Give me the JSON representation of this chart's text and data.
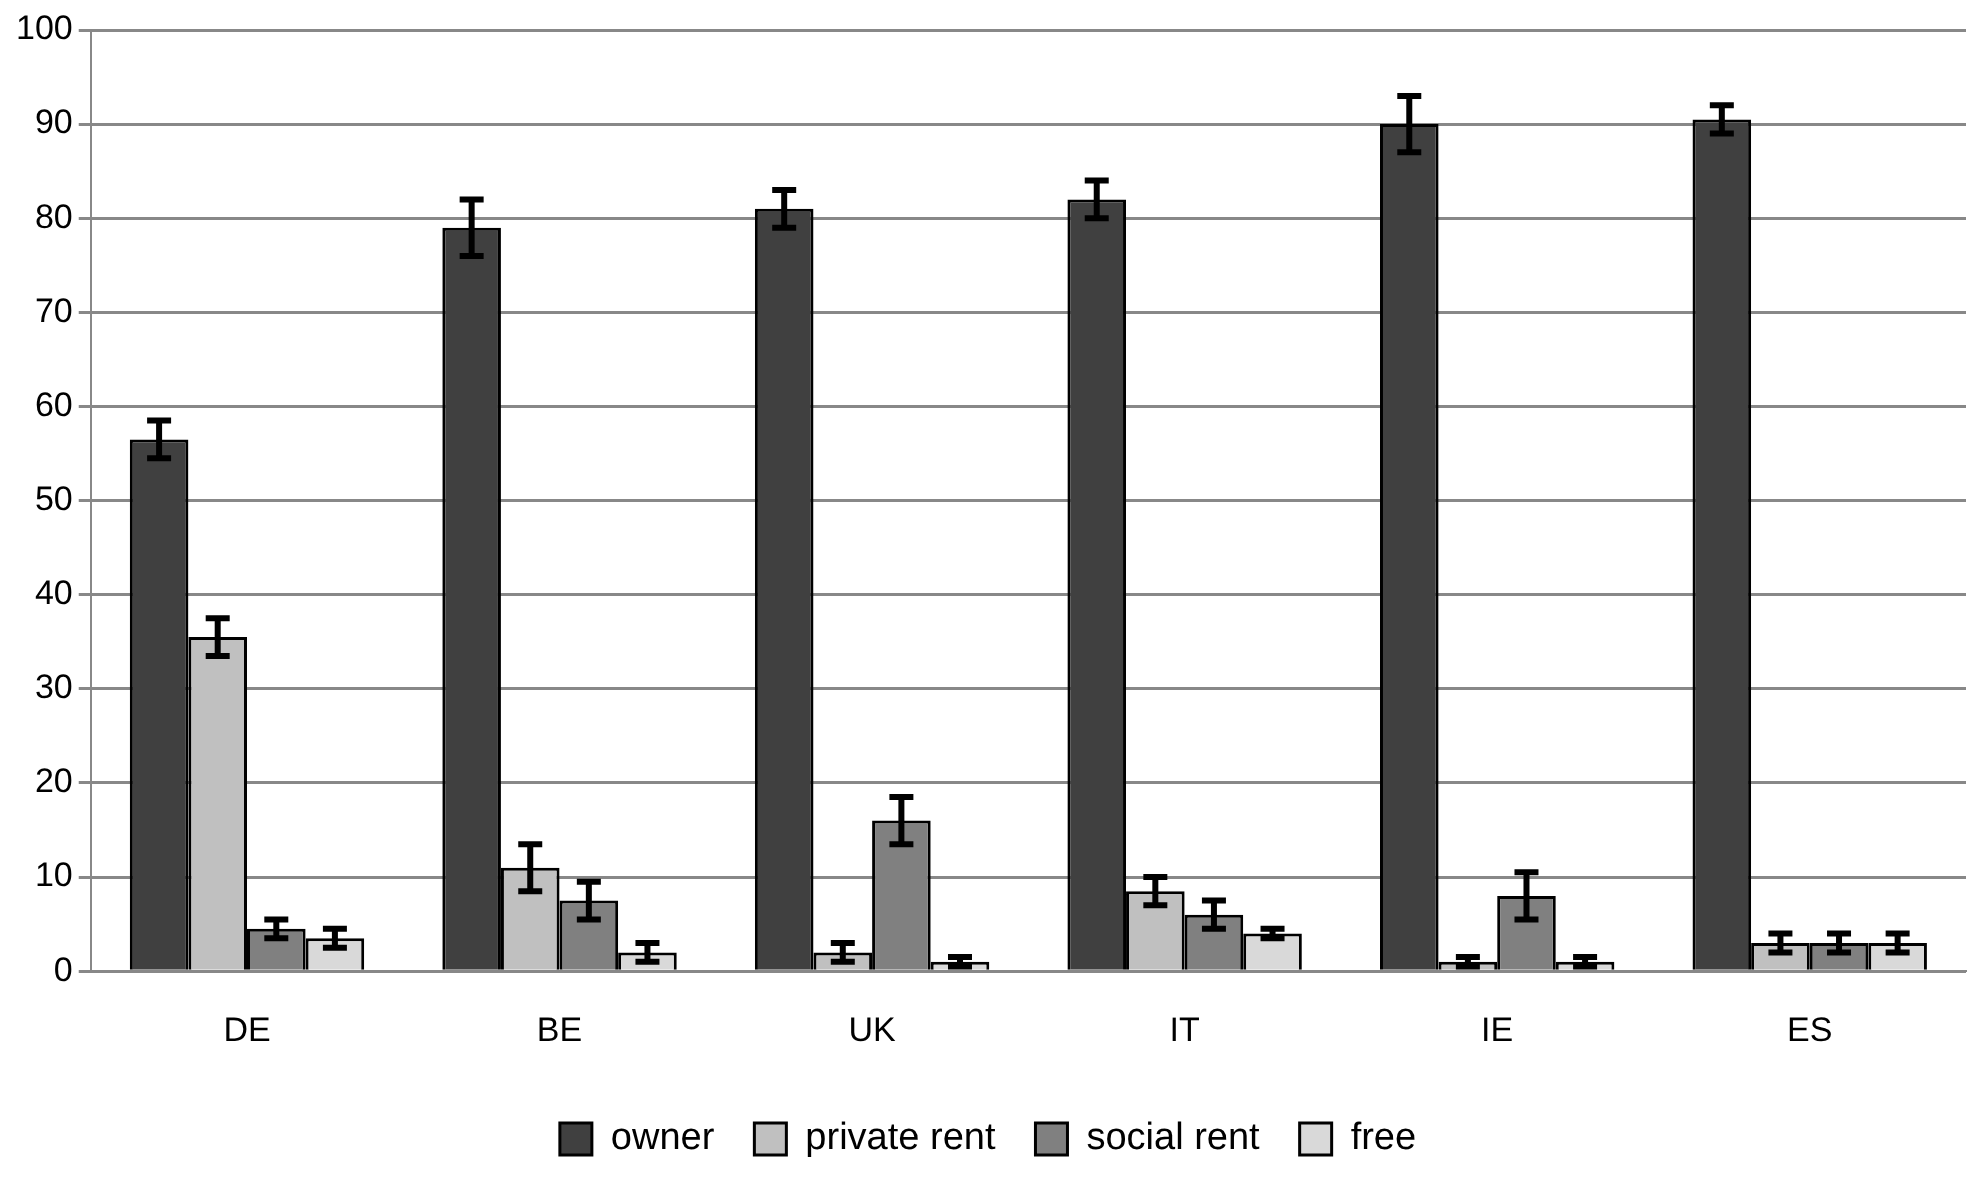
{
  "chart_data": {
    "type": "bar",
    "categories": [
      "DE",
      "BE",
      "UK",
      "IT",
      "IE",
      "ES"
    ],
    "series": [
      {
        "name": "owner",
        "color": "#404040",
        "values": [
          56.5,
          79,
          81,
          82,
          90,
          90.5
        ],
        "errors": [
          2,
          3,
          2,
          2,
          3,
          1.5
        ]
      },
      {
        "name": "private rent",
        "color": "#c0c0c0",
        "values": [
          35.5,
          11,
          2,
          8.5,
          1,
          3
        ],
        "errors": [
          2,
          2.5,
          1,
          1.5,
          0.5,
          1
        ]
      },
      {
        "name": "social rent",
        "color": "#808080",
        "values": [
          4.5,
          7.5,
          16,
          6,
          8,
          3
        ],
        "errors": [
          1,
          2,
          2.5,
          1.5,
          2.5,
          1
        ]
      },
      {
        "name": "free",
        "color": "#d9d9d9",
        "values": [
          3.5,
          2,
          1,
          4,
          1,
          3
        ],
        "errors": [
          1,
          1,
          0.5,
          0.5,
          0.5,
          1
        ]
      }
    ],
    "ylim": [
      0,
      100
    ],
    "yticks": [
      0,
      10,
      20,
      30,
      40,
      50,
      60,
      70,
      80,
      90,
      100
    ],
    "grid": "y",
    "legend": "bottom"
  }
}
